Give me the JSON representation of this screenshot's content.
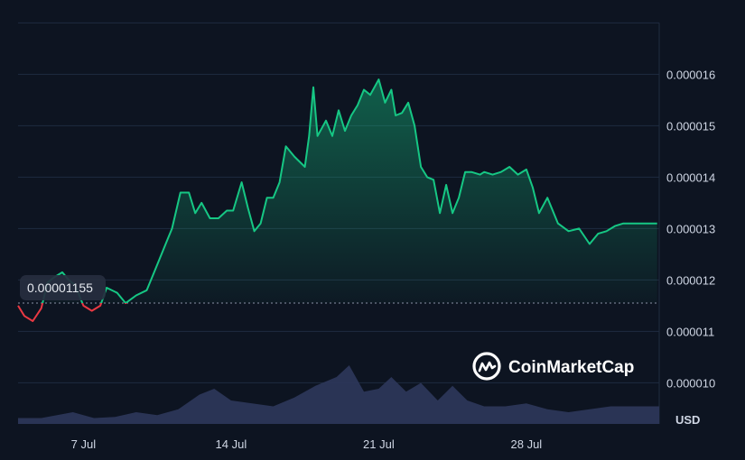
{
  "brand": {
    "name": "CoinMarketCap",
    "logo_icon": "coinmarketcap-logo-icon"
  },
  "colors": {
    "background": "#0d1421",
    "up": "#16c784",
    "down": "#ea3943",
    "volume": "#2c3658",
    "grid": "#1f2b40",
    "reference": "#8a93a6"
  },
  "chart_data": {
    "type": "line",
    "currency_label": "USD",
    "reference_price": 1.155e-05,
    "reference_label": "0.00001155",
    "y_ticks": [
      {
        "value": 1e-05,
        "label": "0.000010"
      },
      {
        "value": 1.1e-05,
        "label": "0.000011"
      },
      {
        "value": 1.2e-05,
        "label": "0.000012"
      },
      {
        "value": 1.3e-05,
        "label": "0.000013"
      },
      {
        "value": 1.4e-05,
        "label": "0.000014"
      },
      {
        "value": 1.5e-05,
        "label": "0.000015"
      },
      {
        "value": 1.6e-05,
        "label": "0.000016"
      }
    ],
    "x_ticks": [
      {
        "day": 7,
        "label": "7 Jul"
      },
      {
        "day": 14,
        "label": "14 Jul"
      },
      {
        "day": 21,
        "label": "21 Jul"
      },
      {
        "day": 28,
        "label": "28 Jul"
      }
    ],
    "x_range": [
      3.9,
      34.3
    ],
    "y_range": [
      9.2e-06,
      1.72e-05
    ],
    "grid": true,
    "price_series": {
      "x": [
        3.9,
        4.2,
        4.6,
        5.0,
        5.3,
        5.6,
        6.0,
        6.3,
        6.6,
        7.0,
        7.4,
        7.8,
        8.1,
        8.6,
        9.0,
        9.5,
        10.0,
        10.3,
        10.6,
        11.0,
        11.2,
        11.6,
        12.0,
        12.3,
        12.6,
        13.0,
        13.4,
        13.8,
        14.1,
        14.5,
        14.8,
        15.1,
        15.4,
        15.7,
        16.0,
        16.3,
        16.6,
        17.0,
        17.5,
        17.7,
        17.9,
        18.1,
        18.5,
        18.8,
        19.1,
        19.4,
        19.7,
        20.0,
        20.3,
        20.6,
        21.0,
        21.3,
        21.6,
        21.8,
        22.1,
        22.4,
        22.7,
        23.0,
        23.3,
        23.6,
        23.9,
        24.2,
        24.5,
        24.8,
        25.1,
        25.4,
        25.8,
        26.0,
        26.4,
        26.8,
        27.2,
        27.6,
        28.0,
        28.3,
        28.6,
        29.0,
        29.5,
        30.0,
        30.5,
        31.0,
        31.4,
        31.8,
        32.2,
        32.6,
        33.0,
        33.4,
        33.8,
        34.2
      ],
      "y": [
        1.15e-05,
        1.13e-05,
        1.12e-05,
        1.145e-05,
        1.195e-05,
        1.205e-05,
        1.215e-05,
        1.2e-05,
        1.19e-05,
        1.15e-05,
        1.14e-05,
        1.15e-05,
        1.185e-05,
        1.175e-05,
        1.155e-05,
        1.17e-05,
        1.18e-05,
        1.21e-05,
        1.24e-05,
        1.28e-05,
        1.3e-05,
        1.37e-05,
        1.37e-05,
        1.33e-05,
        1.35e-05,
        1.32e-05,
        1.32e-05,
        1.335e-05,
        1.335e-05,
        1.39e-05,
        1.34e-05,
        1.295e-05,
        1.31e-05,
        1.36e-05,
        1.36e-05,
        1.39e-05,
        1.46e-05,
        1.44e-05,
        1.42e-05,
        1.48e-05,
        1.575e-05,
        1.48e-05,
        1.51e-05,
        1.48e-05,
        1.53e-05,
        1.49e-05,
        1.52e-05,
        1.54e-05,
        1.57e-05,
        1.56e-05,
        1.59e-05,
        1.545e-05,
        1.57e-05,
        1.52e-05,
        1.525e-05,
        1.545e-05,
        1.5e-05,
        1.42e-05,
        1.4e-05,
        1.395e-05,
        1.33e-05,
        1.385e-05,
        1.33e-05,
        1.36e-05,
        1.41e-05,
        1.41e-05,
        1.405e-05,
        1.41e-05,
        1.405e-05,
        1.41e-05,
        1.42e-05,
        1.405e-05,
        1.415e-05,
        1.38e-05,
        1.33e-05,
        1.36e-05,
        1.31e-05,
        1.295e-05,
        1.3e-05,
        1.27e-05,
        1.29e-05,
        1.295e-05,
        1.305e-05,
        1.31e-05,
        1.31e-05,
        1.31e-05,
        1.31e-05,
        1.31e-05
      ]
    },
    "volume_series": {
      "x": [
        3.9,
        5.0,
        6.5,
        7.5,
        8.5,
        9.5,
        10.5,
        11.5,
        12.5,
        13.2,
        14.0,
        15.0,
        16.0,
        17.0,
        18.0,
        19.0,
        19.6,
        20.3,
        21.0,
        21.6,
        22.3,
        23.0,
        23.8,
        24.5,
        25.2,
        26.0,
        27.0,
        28.0,
        29.0,
        30.0,
        31.0,
        32.0,
        33.0,
        34.3
      ],
      "rel": [
        0.1,
        0.1,
        0.2,
        0.1,
        0.12,
        0.2,
        0.15,
        0.25,
        0.5,
        0.6,
        0.4,
        0.35,
        0.3,
        0.45,
        0.65,
        0.8,
        1.0,
        0.55,
        0.6,
        0.8,
        0.55,
        0.7,
        0.4,
        0.65,
        0.4,
        0.3,
        0.3,
        0.35,
        0.25,
        0.2,
        0.25,
        0.3,
        0.3,
        0.3
      ]
    }
  }
}
